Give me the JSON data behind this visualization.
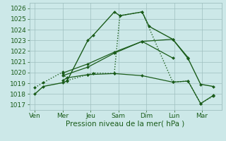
{
  "x_labels": [
    "Ven",
    "Mer",
    "Jeu",
    "Sam",
    "Dim",
    "Lun",
    "Mar"
  ],
  "lines": [
    {
      "x": [
        0.0,
        0.3,
        1.0,
        1.15,
        1.9,
        2.1,
        2.85,
        3.05,
        3.85,
        4.1,
        4.95,
        5.5,
        5.95,
        6.4
      ],
      "y": [
        1018.0,
        1018.7,
        1019.05,
        1019.2,
        1023.0,
        1023.5,
        1025.65,
        1025.3,
        1025.65,
        1024.3,
        1023.1,
        1021.3,
        1018.9,
        1018.7
      ],
      "ls": "-",
      "lw": 1.0,
      "ms": 2.0,
      "marker": "D"
    },
    {
      "x": [
        0.0,
        0.3,
        1.0,
        1.15,
        1.9,
        2.1,
        2.85,
        3.05,
        3.85,
        4.95,
        5.5,
        5.95,
        6.4
      ],
      "y": [
        1018.6,
        1019.05,
        1020.05,
        1019.25,
        1019.8,
        1019.95,
        1019.9,
        1025.3,
        1025.65,
        1019.1,
        1019.2,
        1017.1,
        1017.8
      ],
      "ls": ":",
      "lw": 1.0,
      "ms": 2.0,
      "marker": "D"
    },
    {
      "x": [
        1.0,
        1.15,
        1.9,
        2.85,
        3.85,
        4.95,
        5.5,
        5.95,
        6.4
      ],
      "y": [
        1019.25,
        1019.5,
        1019.8,
        1019.9,
        1019.7,
        1019.1,
        1019.2,
        1017.1,
        1017.85
      ],
      "ls": "-",
      "lw": 0.9,
      "ms": 2.0,
      "marker": "D"
    },
    {
      "x": [
        1.0,
        1.9,
        2.85,
        3.85,
        4.95
      ],
      "y": [
        1019.7,
        1020.5,
        1021.8,
        1022.9,
        1021.35
      ],
      "ls": "-",
      "lw": 0.9,
      "ms": 2.0,
      "marker": "D"
    },
    {
      "x": [
        1.0,
        1.9,
        2.85,
        3.85,
        4.95,
        5.5
      ],
      "y": [
        1019.95,
        1020.8,
        1021.9,
        1022.9,
        1023.1,
        1021.4
      ],
      "ls": "-",
      "lw": 0.9,
      "ms": 2.0,
      "marker": "D"
    }
  ],
  "xlabel": "Pression niveau de la mer( hPa )",
  "ylim": [
    1016.5,
    1026.5
  ],
  "yticks": [
    1017,
    1018,
    1019,
    1020,
    1021,
    1022,
    1023,
    1024,
    1025,
    1026
  ],
  "xlim": [
    -0.2,
    6.7
  ],
  "bg_color": "#cce8e8",
  "grid_color": "#9fbfbf",
  "line_color": "#1a5c1a",
  "xlabel_fontsize": 7.5,
  "tick_fontsize": 6.5
}
